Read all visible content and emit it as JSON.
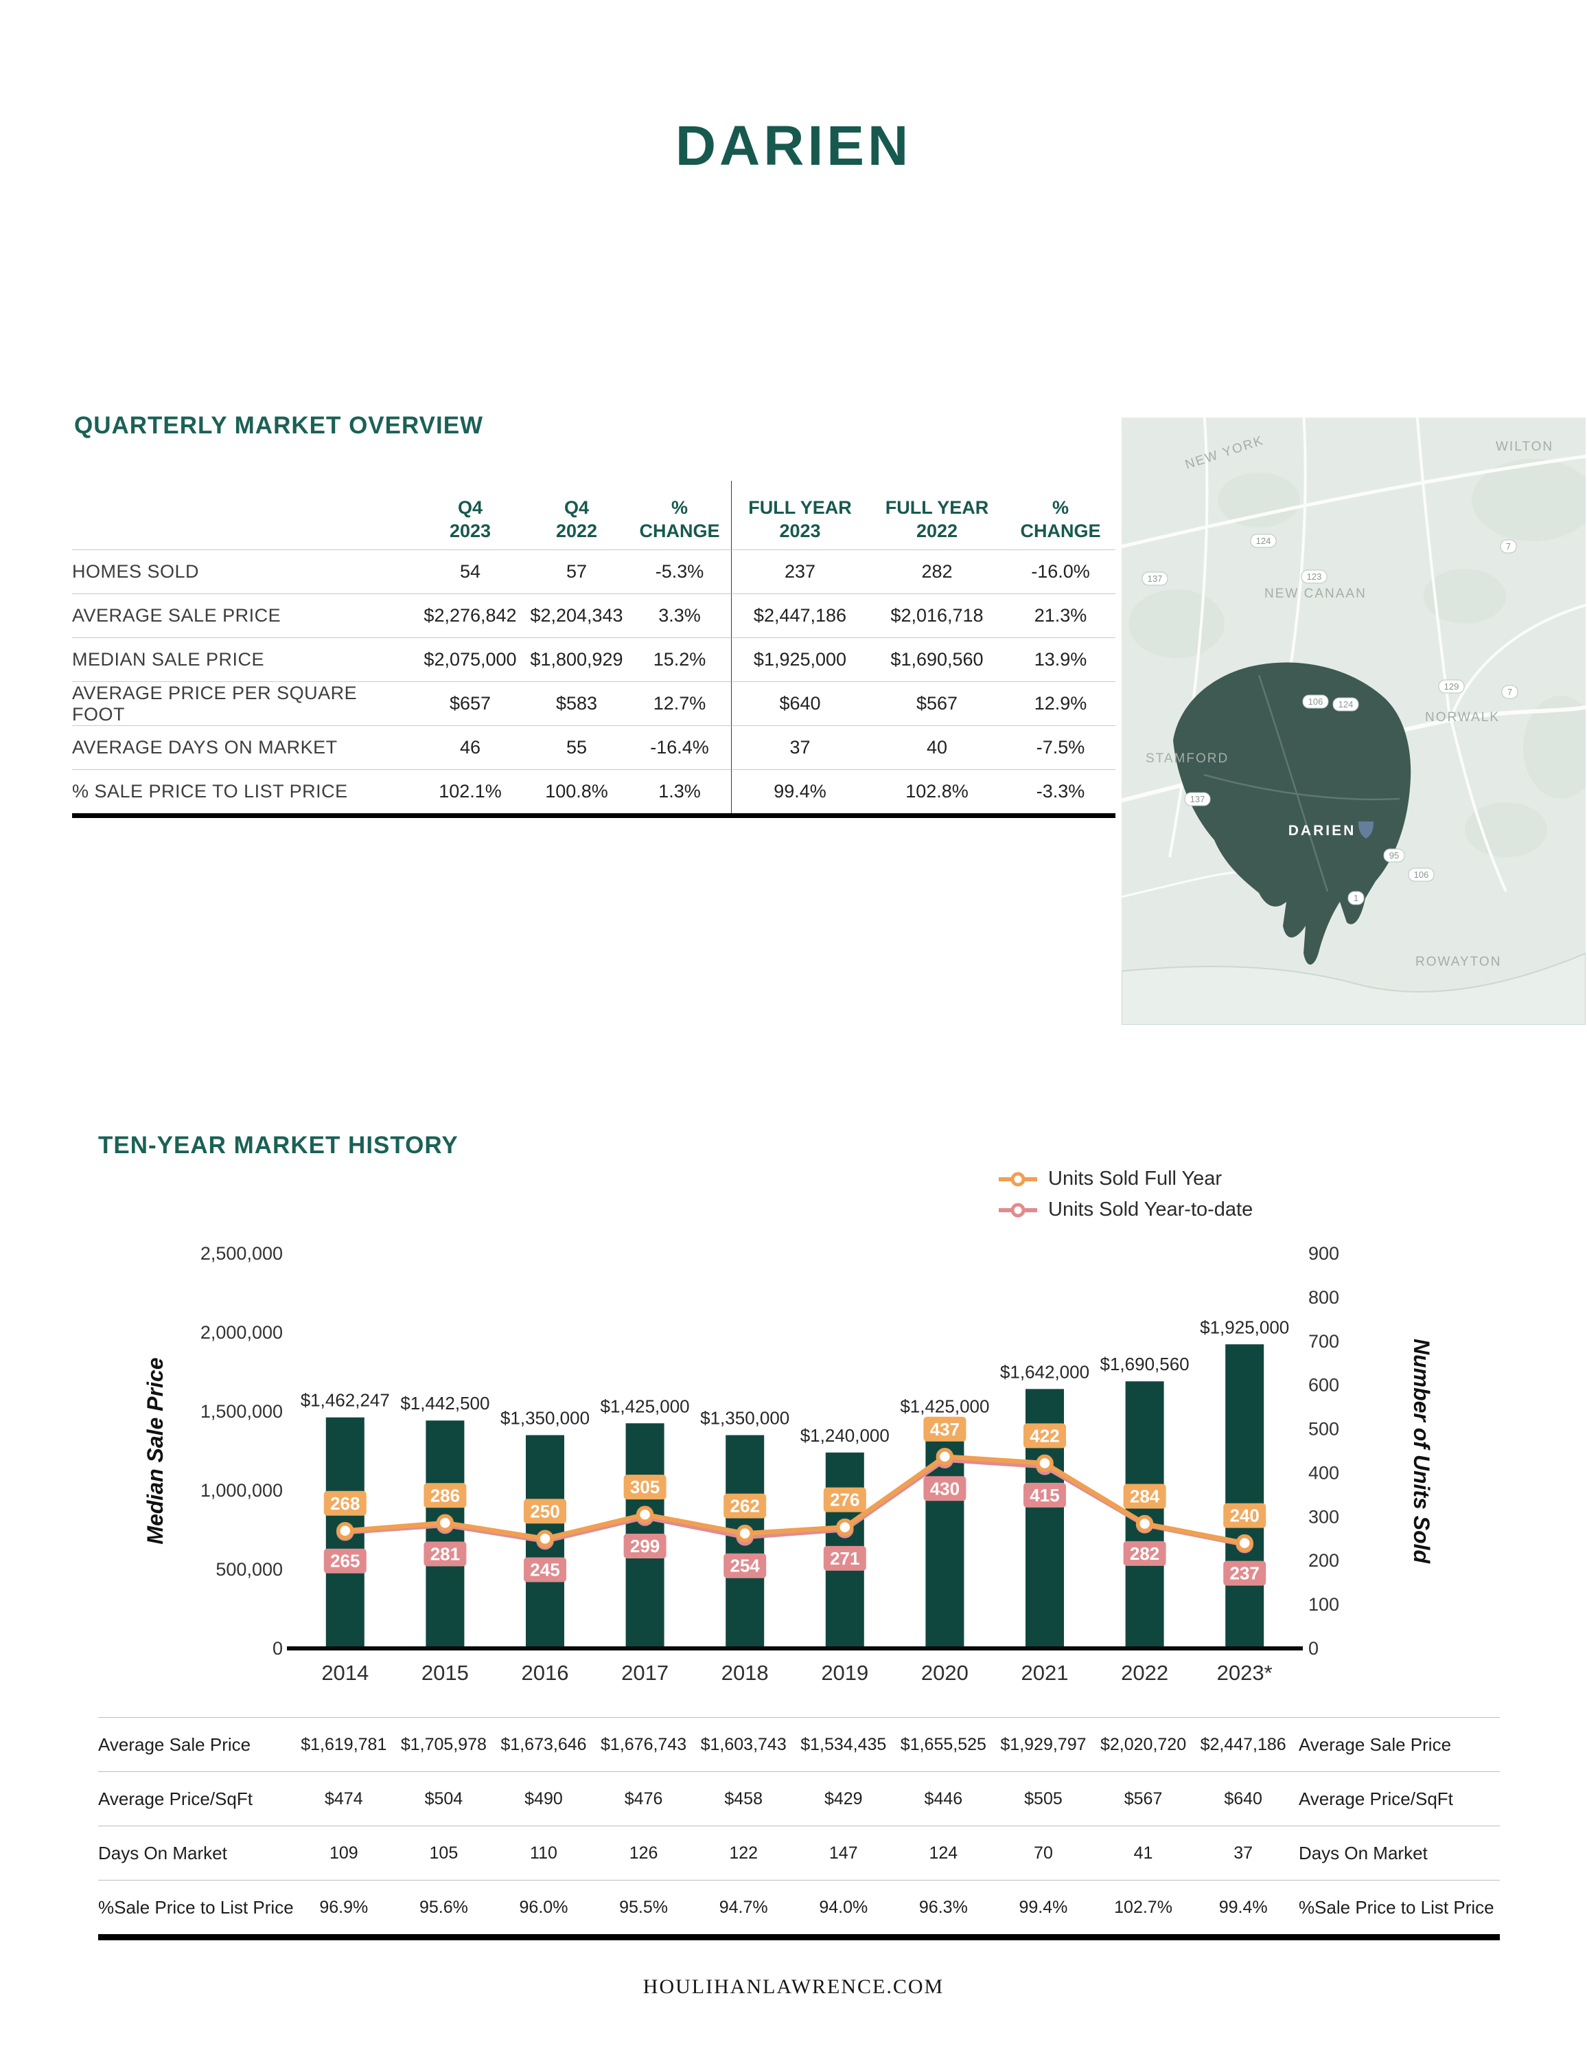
{
  "page": {
    "title": "DARIEN",
    "footer": "HOULIHANLAWRENCE.COM"
  },
  "quarterly": {
    "heading": "QUARTERLY MARKET OVERVIEW",
    "column_headers": [
      {
        "line1": "Q4",
        "line2": "2023"
      },
      {
        "line1": "Q4",
        "line2": "2022"
      },
      {
        "line1": "%",
        "line2": "CHANGE"
      },
      {
        "line1": "FULL YEAR",
        "line2": "2023"
      },
      {
        "line1": "FULL YEAR",
        "line2": "2022"
      },
      {
        "line1": "%",
        "line2": "CHANGE"
      }
    ],
    "rows": [
      {
        "label": "HOMES SOLD",
        "values": [
          "54",
          "57",
          "-5.3%",
          "237",
          "282",
          "-16.0%"
        ]
      },
      {
        "label": "AVERAGE SALE PRICE",
        "values": [
          "$2,276,842",
          "$2,204,343",
          "3.3%",
          "$2,447,186",
          "$2,016,718",
          "21.3%"
        ]
      },
      {
        "label": "MEDIAN SALE PRICE",
        "values": [
          "$2,075,000",
          "$1,800,929",
          "15.2%",
          "$1,925,000",
          "$1,690,560",
          "13.9%"
        ]
      },
      {
        "label": "AVERAGE PRICE PER SQUARE FOOT",
        "values": [
          "$657",
          "$583",
          "12.7%",
          "$640",
          "$567",
          "12.9%"
        ]
      },
      {
        "label": "AVERAGE DAYS ON MARKET",
        "values": [
          "46",
          "55",
          "-16.4%",
          "37",
          "40",
          "-7.5%"
        ]
      },
      {
        "label": "% SALE PRICE TO LIST PRICE",
        "values": [
          "102.1%",
          "100.8%",
          "1.3%",
          "99.4%",
          "102.8%",
          "-3.3%"
        ]
      }
    ]
  },
  "map": {
    "region_labels": [
      "NEW YORK",
      "WILTON",
      "NEW CANAAN",
      "NORWALK",
      "STAMFORD",
      "ROWAYTON"
    ],
    "town_label": "DARIEN",
    "route_badges": [
      "137",
      "124",
      "123",
      "7",
      "106",
      "124",
      "129",
      "7",
      "137",
      "1",
      "95",
      "106"
    ]
  },
  "history": {
    "heading": "TEN-YEAR MARKET HISTORY",
    "legend": [
      {
        "label": "Units Sold Full Year",
        "color": "#EFA052"
      },
      {
        "label": "Units Sold Year-to-date",
        "color": "#E18B8F"
      }
    ]
  },
  "chart_data": {
    "type": "bar+line",
    "categories": [
      "2014",
      "2015",
      "2016",
      "2017",
      "2018",
      "2019",
      "2020",
      "2021",
      "2022",
      "2023*"
    ],
    "bars": {
      "name": "Median Sale Price",
      "color": "#0F473F",
      "values": [
        1462247,
        1442500,
        1350000,
        1425000,
        1350000,
        1240000,
        1425000,
        1642000,
        1690560,
        1925000
      ],
      "labels": [
        "$1,462,247",
        "$1,442,500",
        "$1,350,000",
        "$1,425,000",
        "$1,350,000",
        "$1,240,000",
        "$1,425,000",
        "$1,642,000",
        "$1,690,560",
        "$1,925,000"
      ]
    },
    "series": [
      {
        "name": "Units Sold Full Year",
        "color": "#EFA052",
        "chip_color": "#F2AA5E",
        "values": [
          268,
          286,
          250,
          305,
          262,
          276,
          437,
          422,
          284,
          240
        ]
      },
      {
        "name": "Units Sold Year-to-date",
        "color": "#E18B8F",
        "chip_color": "#E18B8F",
        "values": [
          265,
          281,
          245,
          299,
          254,
          271,
          430,
          415,
          282,
          237
        ]
      }
    ],
    "left_axis": {
      "title": "Median Sale Price",
      "max": 2500000,
      "ticks": [
        "2,500,000",
        "2,000,000",
        "1,500,000",
        "1,000,000",
        "500,000",
        "0"
      ]
    },
    "right_axis": {
      "title": "Number of Units Sold",
      "max": 900,
      "ticks": [
        "900",
        "800",
        "700",
        "600",
        "500",
        "400",
        "300",
        "200",
        "100",
        "0"
      ]
    },
    "legend_position": "top-right",
    "grid": false
  },
  "annual_table": {
    "rows": [
      {
        "label": "Average Sale Price",
        "values": [
          "$1,619,781",
          "$1,705,978",
          "$1,673,646",
          "$1,676,743",
          "$1,603,743",
          "$1,534,435",
          "$1,655,525",
          "$1,929,797",
          "$2,020,720",
          "$2,447,186"
        ]
      },
      {
        "label": "Average Price/SqFt",
        "values": [
          "$474",
          "$504",
          "$490",
          "$476",
          "$458",
          "$429",
          "$446",
          "$505",
          "$567",
          "$640"
        ]
      },
      {
        "label": "Days On Market",
        "values": [
          "109",
          "105",
          "110",
          "126",
          "122",
          "147",
          "124",
          "70",
          "41",
          "37"
        ]
      },
      {
        "label": "%Sale Price to List Price",
        "values": [
          "96.9%",
          "95.6%",
          "96.0%",
          "95.5%",
          "94.7%",
          "94.0%",
          "96.3%",
          "99.4%",
          "102.7%",
          "99.4%"
        ]
      }
    ]
  }
}
